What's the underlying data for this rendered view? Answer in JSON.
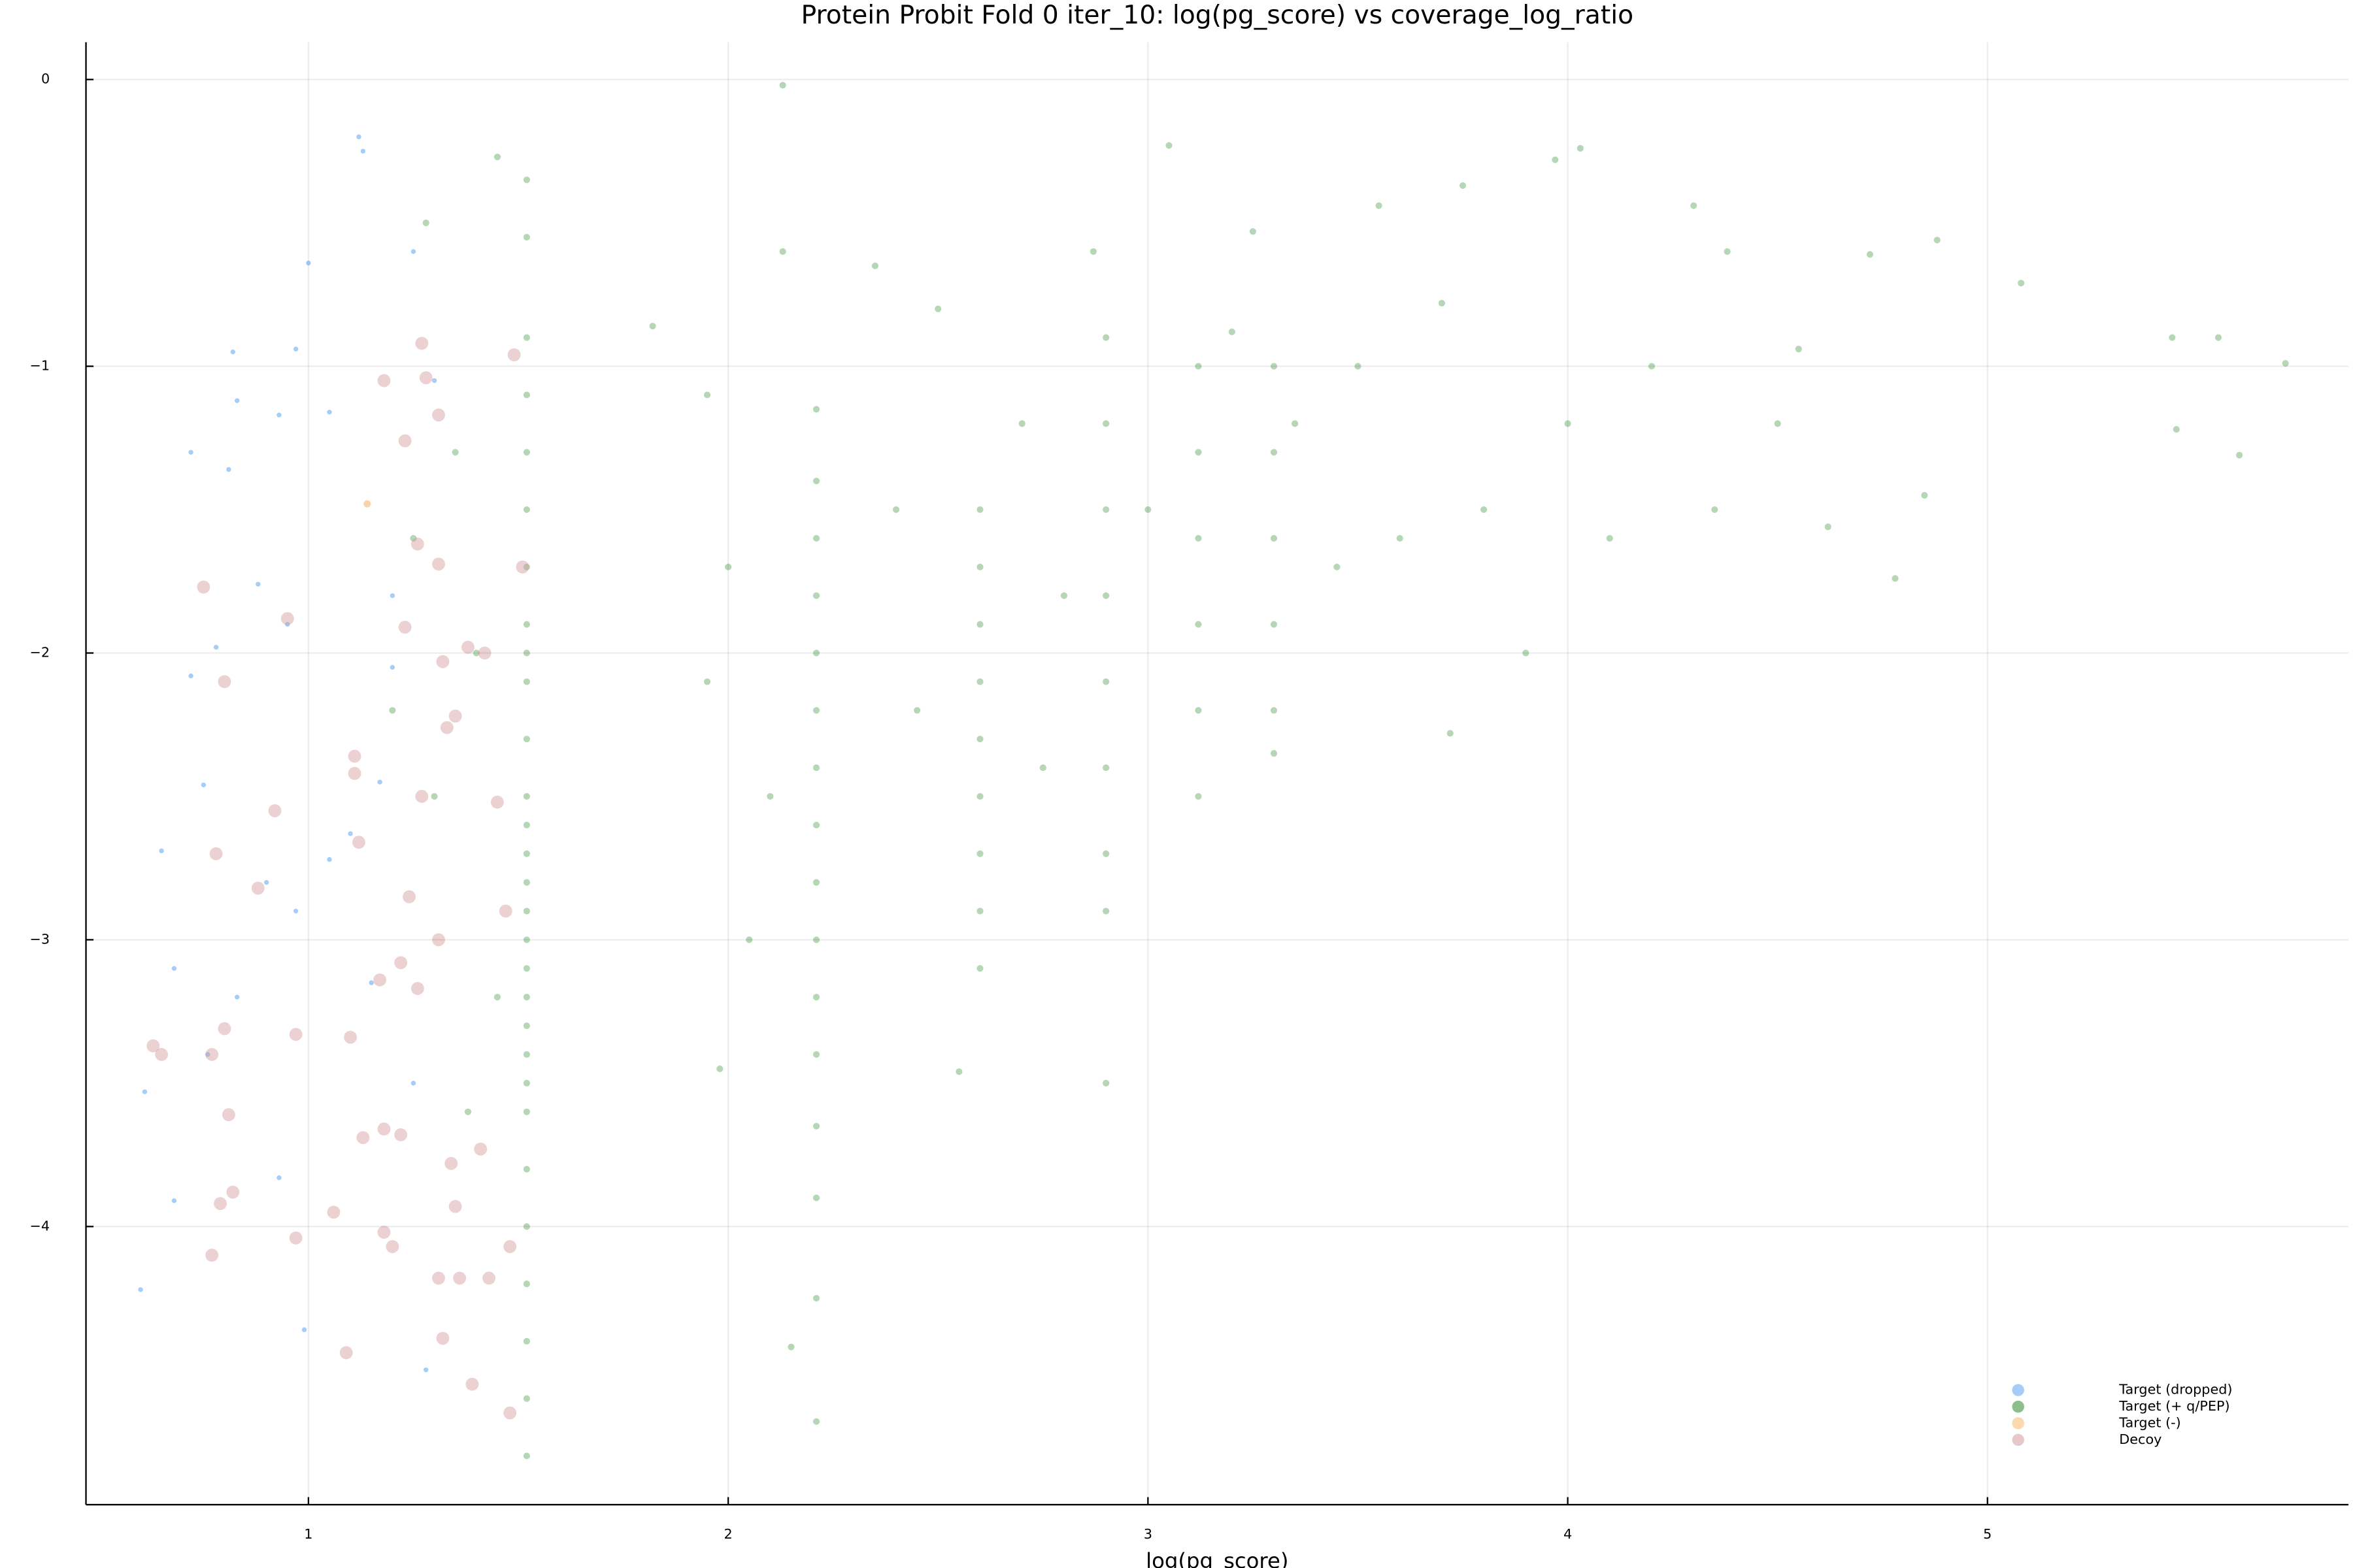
{
  "chart_data": {
    "type": "scatter",
    "title": "Protein Probit Fold 0 iter_10: log(pg_score) vs coverage_log_ratio",
    "x_label": "log(pg_score)",
    "xlim": [
      0.47,
      5.86
    ],
    "ylim": [
      -4.97,
      0.13
    ],
    "xticks": [
      1,
      2,
      3,
      4,
      5
    ],
    "yticks": [
      0,
      {
        "value": -1,
        "label": "−1"
      },
      {
        "value": -2,
        "label": "−2"
      },
      {
        "value": -3,
        "label": "−3"
      },
      {
        "value": -4,
        "label": "−4"
      }
    ],
    "grid": true,
    "legend": "bottom-right",
    "series": [
      {
        "name": "Target (dropped)",
        "color": "#5aa6f0",
        "x": [
          1.12,
          1.13,
          1.0,
          0.82,
          0.97,
          0.72,
          0.83,
          0.93,
          0.81,
          0.88,
          0.78,
          0.72,
          0.95,
          1.2,
          1.1,
          0.75,
          0.65,
          0.9,
          0.97,
          1.05,
          0.68,
          0.83,
          1.15,
          1.25,
          0.61,
          0.76,
          0.93,
          0.68,
          0.6,
          0.99,
          1.28,
          1.2,
          1.3,
          1.25,
          1.05,
          1.17
        ],
        "values": [
          -0.2,
          -0.25,
          -0.64,
          -0.95,
          -0.94,
          -1.3,
          -1.12,
          -1.17,
          -1.36,
          -1.76,
          -1.98,
          -2.08,
          -1.9,
          -2.05,
          -2.63,
          -2.46,
          -2.69,
          -2.8,
          -2.9,
          -2.72,
          -3.1,
          -3.2,
          -3.15,
          -3.5,
          -3.53,
          -3.4,
          -3.83,
          -3.91,
          -4.22,
          -4.36,
          -4.5,
          -1.8,
          -1.05,
          -0.6,
          -1.16,
          -2.45
        ]
      },
      {
        "name": "Target (+ q/PEP)",
        "color": "#2e8b2e",
        "x": [
          1.52,
          1.52,
          1.52,
          1.52,
          1.52,
          1.52,
          1.52,
          1.52,
          1.52,
          1.52,
          1.52,
          1.52,
          1.52,
          1.52,
          1.52,
          1.52,
          1.52,
          1.52,
          1.52,
          1.52,
          1.52,
          1.52,
          1.52,
          1.52,
          1.52,
          1.52,
          1.52,
          1.52,
          1.52,
          2.21,
          2.21,
          2.21,
          2.21,
          2.21,
          2.21,
          2.21,
          2.21,
          2.21,
          2.21,
          2.21,
          2.21,
          2.21,
          2.21,
          2.21,
          2.21,
          2.6,
          2.6,
          2.6,
          2.6,
          2.6,
          2.6,
          2.6,
          2.6,
          2.6,
          2.9,
          2.9,
          2.9,
          2.9,
          2.9,
          2.9,
          2.9,
          2.9,
          3.12,
          3.12,
          3.12,
          3.12,
          3.12,
          3.12,
          3.3,
          3.3,
          3.3,
          3.3,
          3.3,
          3.3,
          1.28,
          1.45,
          1.35,
          1.4,
          1.3,
          1.45,
          1.38,
          1.2,
          1.25,
          1.82,
          1.95,
          2.0,
          1.95,
          2.1,
          2.05,
          1.98,
          2.13,
          2.13,
          2.15,
          2.35,
          2.4,
          2.45,
          2.5,
          2.55,
          2.7,
          2.75,
          2.8,
          2.87,
          2.9,
          3.05,
          3.0,
          3.2,
          3.25,
          3.35,
          3.45,
          3.5,
          3.55,
          3.6,
          3.7,
          3.75,
          3.72,
          3.8,
          3.9,
          3.97,
          4.03,
          4.0,
          4.1,
          4.2,
          4.3,
          4.35,
          4.38,
          4.5,
          4.55,
          4.62,
          4.72,
          4.78,
          4.85,
          4.88,
          5.08,
          5.44,
          5.45,
          5.55,
          5.6,
          5.71
        ],
        "values": [
          -0.35,
          -0.55,
          -0.9,
          -1.1,
          -1.3,
          -1.5,
          -1.7,
          -1.9,
          -2.0,
          -2.1,
          -2.3,
          -2.5,
          -2.6,
          -2.7,
          -2.8,
          -2.9,
          -3.0,
          -3.1,
          -3.2,
          -3.3,
          -3.4,
          -3.5,
          -3.6,
          -3.8,
          -4.0,
          -4.2,
          -4.4,
          -4.6,
          -4.8,
          -1.15,
          -1.4,
          -1.6,
          -1.8,
          -2.0,
          -2.2,
          -2.4,
          -2.6,
          -2.8,
          -3.0,
          -3.2,
          -3.4,
          -3.65,
          -3.9,
          -4.25,
          -4.68,
          -1.5,
          -1.7,
          -1.9,
          -2.1,
          -2.3,
          -2.5,
          -2.7,
          -2.9,
          -3.1,
          -0.9,
          -1.2,
          -1.5,
          -1.8,
          -2.1,
          -2.4,
          -2.7,
          -2.9,
          -1.0,
          -1.3,
          -1.6,
          -1.9,
          -2.2,
          -2.5,
          -1.0,
          -1.3,
          -1.6,
          -1.9,
          -2.2,
          -2.35,
          -0.5,
          -0.27,
          -1.3,
          -2.0,
          -2.5,
          -3.2,
          -3.6,
          -2.2,
          -1.6,
          -0.86,
          -1.1,
          -1.7,
          -2.1,
          -2.5,
          -3.0,
          -3.45,
          -0.02,
          -0.6,
          -4.42,
          -0.65,
          -1.5,
          -2.2,
          -0.8,
          -3.46,
          -1.2,
          -2.4,
          -1.8,
          -0.6,
          -3.5,
          -0.23,
          -1.5,
          -0.88,
          -0.53,
          -1.2,
          -1.7,
          -1.0,
          -0.44,
          -1.6,
          -0.78,
          -0.37,
          -2.28,
          -1.5,
          -2.0,
          -0.28,
          -0.24,
          -1.2,
          -1.6,
          -1.0,
          -0.44,
          -1.5,
          -0.6,
          -1.2,
          -0.94,
          -1.56,
          -0.61,
          -1.74,
          -1.45,
          -0.56,
          -0.71,
          -0.9,
          -1.22,
          -0.9,
          -1.31,
          -0.99
        ]
      },
      {
        "name": "Target (-)",
        "color": "#f5b870",
        "x": [
          1.14
        ],
        "values": [
          -1.48
        ]
      },
      {
        "name": "Decoy",
        "color": "#d29a9a",
        "x": [
          0.75,
          0.95,
          0.8,
          0.78,
          0.92,
          0.88,
          0.8,
          0.97,
          0.63,
          0.65,
          0.77,
          0.81,
          0.82,
          0.79,
          0.77,
          0.97,
          1.06,
          1.09,
          1.18,
          1.2,
          1.31,
          1.36,
          1.43,
          1.32,
          1.39,
          1.48,
          1.13,
          1.18,
          1.22,
          1.34,
          1.35,
          1.41,
          1.1,
          1.17,
          1.22,
          1.26,
          1.11,
          1.11,
          1.12,
          1.27,
          1.24,
          1.31,
          1.35,
          1.33,
          1.32,
          1.38,
          1.42,
          1.23,
          1.31,
          1.26,
          1.18,
          1.23,
          1.28,
          1.31,
          1.27,
          1.49,
          1.45,
          1.47,
          1.51,
          1.48
        ],
        "values": [
          -1.77,
          -1.88,
          -2.1,
          -2.7,
          -2.55,
          -2.82,
          -3.31,
          -3.33,
          -3.37,
          -3.4,
          -3.4,
          -3.61,
          -3.88,
          -3.92,
          -4.1,
          -4.04,
          -3.95,
          -4.44,
          -4.02,
          -4.07,
          -4.18,
          -4.18,
          -4.18,
          -4.39,
          -4.55,
          -4.65,
          -3.69,
          -3.66,
          -3.68,
          -3.78,
          -3.93,
          -3.73,
          -3.34,
          -3.14,
          -3.08,
          -3.17,
          -2.42,
          -2.36,
          -2.66,
          -2.5,
          -2.85,
          -3.0,
          -2.22,
          -2.26,
          -2.03,
          -1.98,
          -2.0,
          -1.91,
          -1.69,
          -1.62,
          -1.05,
          -1.26,
          -1.04,
          -1.17,
          -0.92,
          -0.96,
          -2.52,
          -2.9,
          -1.7,
          -4.07
        ]
      }
    ]
  }
}
